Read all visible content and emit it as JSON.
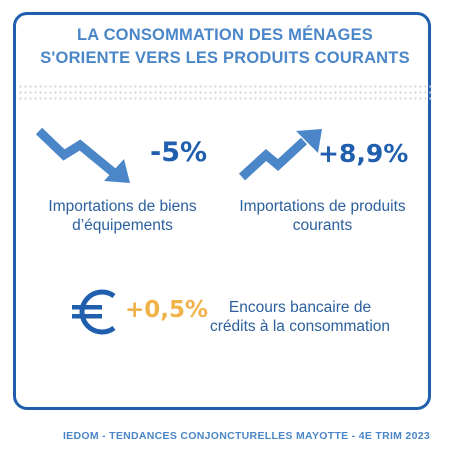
{
  "title": {
    "line1": "LA CONSOMMATION DES MÉNAGES",
    "line2": "S'ORIENTE VERS LES PRODUITS COURANTS"
  },
  "stats": [
    {
      "icon": "trend-down-arrow-icon",
      "value": "-5%",
      "label_line1": "Importations de biens",
      "label_line2": "d’équipements"
    },
    {
      "icon": "trend-up-arrow-icon",
      "value": "+8,9%",
      "label_line1": "Importations de produits",
      "label_line2": "courants"
    },
    {
      "icon": "euro-icon",
      "value": "+0,5%",
      "label_line1": "Encours bancaire de",
      "label_line2": "crédits à la consommation"
    }
  ],
  "footer": "IEDOM - TENDANCES CONJONCTURELLES MAYOTTE - 4E TRIM 2023",
  "colors": {
    "primary_blue": "#1f5fad",
    "light_blue": "#4a86c8",
    "orange_accent": "#f0b24a"
  }
}
